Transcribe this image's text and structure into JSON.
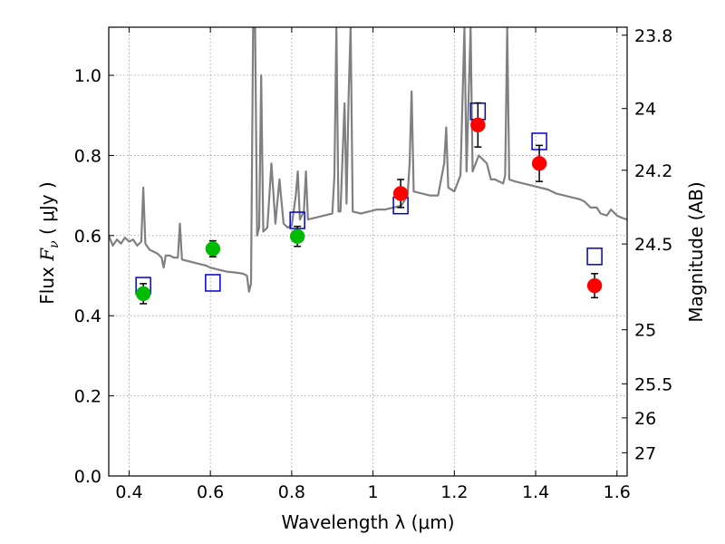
{
  "chart_data": {
    "type": "scatter",
    "xlabel": "Wavelength  λ (μm)",
    "ylabel": "Flux  F_ν  ( μJy )",
    "ylabel_parts": {
      "prefix": "Flux  ",
      "symbol": "F",
      "subscript": "ν",
      "unit": "  ( μJy )"
    },
    "ylabel_right": "Magnitude (AB)",
    "xlim": [
      0.35,
      1.625
    ],
    "ylim": [
      0.0,
      1.12
    ],
    "x_ticks": [
      0.4,
      0.6,
      0.8,
      1.0,
      1.2,
      1.4,
      1.6
    ],
    "x_tick_labels": [
      "0.4",
      "0.6",
      "0.8",
      "1",
      "1.2",
      "1.4",
      "1.6"
    ],
    "y_ticks": [
      0.0,
      0.2,
      0.4,
      0.6,
      0.8,
      1.0
    ],
    "y_tick_labels": [
      "0.0",
      "0.2",
      "0.4",
      "0.6",
      "0.8",
      "1.0"
    ],
    "right_ticks": [
      {
        "label": "23.8",
        "flux": 1.1
      },
      {
        "label": "24",
        "flux": 0.917
      },
      {
        "label": "24.2",
        "flux": 0.763
      },
      {
        "label": "24.5",
        "flux": 0.579
      },
      {
        "label": "25",
        "flux": 0.365
      },
      {
        "label": "25.5",
        "flux": 0.23
      },
      {
        "label": "26",
        "flux": 0.145
      },
      {
        "label": "27",
        "flux": 0.058
      }
    ],
    "grid": true,
    "colors": {
      "spectrum": "#808080",
      "green_points": "#00bb00",
      "red_points": "#ff0000",
      "model_squares": "#0000cc",
      "error_bars": "#000000",
      "grid": "#999999"
    },
    "series": [
      {
        "kind": "line",
        "points": [
          [
            0.35,
            0.6
          ],
          [
            0.36,
            0.575
          ],
          [
            0.37,
            0.59
          ],
          [
            0.38,
            0.58
          ],
          [
            0.39,
            0.595
          ],
          [
            0.4,
            0.585
          ],
          [
            0.41,
            0.59
          ],
          [
            0.42,
            0.575
          ],
          [
            0.43,
            0.585
          ],
          [
            0.435,
            0.72
          ],
          [
            0.44,
            0.58
          ],
          [
            0.45,
            0.565
          ],
          [
            0.46,
            0.56
          ],
          [
            0.47,
            0.555
          ],
          [
            0.48,
            0.545
          ],
          [
            0.485,
            0.52
          ],
          [
            0.49,
            0.55
          ],
          [
            0.5,
            0.55
          ],
          [
            0.51,
            0.545
          ],
          [
            0.52,
            0.545
          ],
          [
            0.525,
            0.63
          ],
          [
            0.53,
            0.54
          ],
          [
            0.55,
            0.535
          ],
          [
            0.57,
            0.53
          ],
          [
            0.59,
            0.525
          ],
          [
            0.6,
            0.52
          ],
          [
            0.62,
            0.515
          ],
          [
            0.64,
            0.51
          ],
          [
            0.66,
            0.508
          ],
          [
            0.68,
            0.505
          ],
          [
            0.69,
            0.5
          ],
          [
            0.695,
            0.46
          ],
          [
            0.7,
            0.48
          ],
          [
            0.705,
            1.12
          ],
          [
            0.71,
            1.12
          ],
          [
            0.715,
            0.6
          ],
          [
            0.72,
            0.62
          ],
          [
            0.725,
            1.0
          ],
          [
            0.73,
            0.61
          ],
          [
            0.74,
            0.62
          ],
          [
            0.75,
            0.78
          ],
          [
            0.76,
            0.63
          ],
          [
            0.77,
            0.74
          ],
          [
            0.78,
            0.63
          ],
          [
            0.79,
            0.62
          ],
          [
            0.8,
            0.625
          ],
          [
            0.81,
            0.7
          ],
          [
            0.815,
            0.76
          ],
          [
            0.82,
            0.64
          ],
          [
            0.83,
            0.66
          ],
          [
            0.835,
            0.76
          ],
          [
            0.84,
            0.64
          ],
          [
            0.86,
            0.645
          ],
          [
            0.88,
            0.65
          ],
          [
            0.9,
            0.655
          ],
          [
            0.905,
            0.75
          ],
          [
            0.91,
            1.12
          ],
          [
            0.915,
            0.66
          ],
          [
            0.92,
            0.66
          ],
          [
            0.93,
            0.93
          ],
          [
            0.935,
            0.68
          ],
          [
            0.94,
            0.95
          ],
          [
            0.945,
            1.12
          ],
          [
            0.95,
            0.66
          ],
          [
            0.97,
            0.655
          ],
          [
            0.99,
            0.66
          ],
          [
            1.01,
            0.665
          ],
          [
            1.03,
            0.665
          ],
          [
            1.05,
            0.67
          ],
          [
            1.07,
            0.675
          ],
          [
            1.085,
            0.7
          ],
          [
            1.09,
            0.78
          ],
          [
            1.095,
            0.96
          ],
          [
            1.1,
            0.71
          ],
          [
            1.12,
            0.705
          ],
          [
            1.14,
            0.7
          ],
          [
            1.16,
            0.7
          ],
          [
            1.175,
            0.78
          ],
          [
            1.18,
            0.87
          ],
          [
            1.185,
            0.72
          ],
          [
            1.2,
            0.71
          ],
          [
            1.215,
            0.75
          ],
          [
            1.225,
            1.12
          ],
          [
            1.23,
            0.76
          ],
          [
            1.24,
            1.12
          ],
          [
            1.245,
            0.76
          ],
          [
            1.26,
            0.8
          ],
          [
            1.28,
            0.78
          ],
          [
            1.29,
            0.74
          ],
          [
            1.3,
            0.74
          ],
          [
            1.31,
            0.735
          ],
          [
            1.32,
            0.73
          ],
          [
            1.325,
            0.75
          ],
          [
            1.33,
            1.12
          ],
          [
            1.335,
            0.74
          ],
          [
            1.35,
            0.735
          ],
          [
            1.37,
            0.73
          ],
          [
            1.39,
            0.725
          ],
          [
            1.41,
            0.72
          ],
          [
            1.43,
            0.715
          ],
          [
            1.45,
            0.705
          ],
          [
            1.47,
            0.7
          ],
          [
            1.49,
            0.695
          ],
          [
            1.51,
            0.69
          ],
          [
            1.52,
            0.685
          ],
          [
            1.535,
            0.67
          ],
          [
            1.55,
            0.67
          ],
          [
            1.56,
            0.655
          ],
          [
            1.575,
            0.65
          ],
          [
            1.585,
            0.665
          ],
          [
            1.6,
            0.65
          ],
          [
            1.61,
            0.645
          ],
          [
            1.625,
            0.64
          ]
        ]
      },
      {
        "kind": "points-with-errors",
        "marker": "circle",
        "color_key": "green_points",
        "points": [
          {
            "x": 0.435,
            "y": 0.455,
            "err": 0.025
          },
          {
            "x": 0.606,
            "y": 0.567,
            "err": 0.02
          },
          {
            "x": 0.814,
            "y": 0.598,
            "err": 0.025
          }
        ]
      },
      {
        "kind": "points-with-errors",
        "marker": "circle",
        "color_key": "red_points",
        "points": [
          {
            "x": 1.068,
            "y": 0.705,
            "err": 0.035
          },
          {
            "x": 1.258,
            "y": 0.876,
            "err": 0.055
          },
          {
            "x": 1.409,
            "y": 0.78,
            "err": 0.045
          },
          {
            "x": 1.545,
            "y": 0.475,
            "err": 0.03
          }
        ]
      },
      {
        "kind": "points",
        "marker": "square",
        "color_key": "model_squares",
        "points": [
          {
            "x": 0.435,
            "y": 0.475
          },
          {
            "x": 0.606,
            "y": 0.482
          },
          {
            "x": 0.814,
            "y": 0.638
          },
          {
            "x": 1.068,
            "y": 0.675
          },
          {
            "x": 1.258,
            "y": 0.91
          },
          {
            "x": 1.409,
            "y": 0.835
          },
          {
            "x": 1.545,
            "y": 0.548
          }
        ]
      }
    ]
  }
}
